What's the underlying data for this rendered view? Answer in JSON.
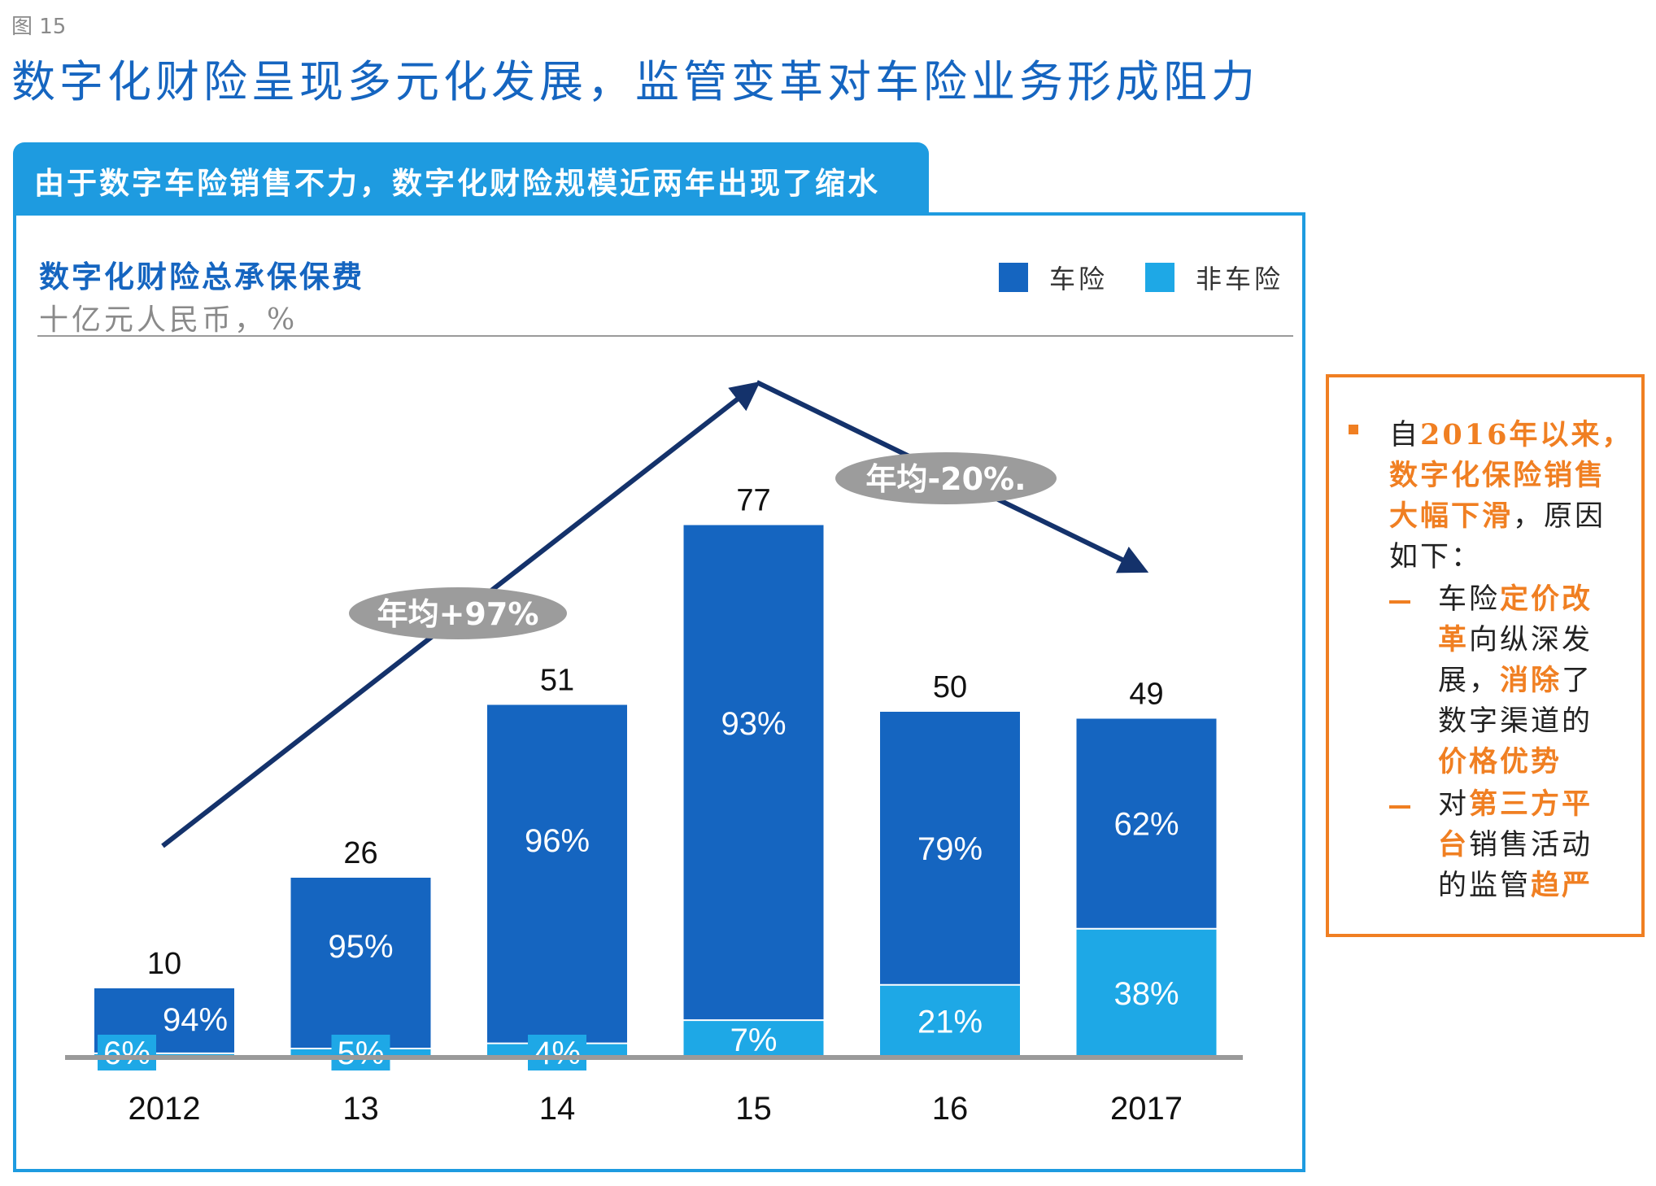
{
  "figure_label": "图 15",
  "page_title": "数字化财险呈现多元化发展，监管变革对车险业务形成阻力",
  "banner_text": "由于数字车险销售不力，数字化财险规模近两年出现了缩水",
  "chart_data": {
    "type": "bar",
    "stacked": true,
    "title": "数字化财险总承保保费",
    "unit": "十亿元人民币，%",
    "categories": [
      "2012",
      "13",
      "14",
      "15",
      "16",
      "2017"
    ],
    "totals": [
      10,
      26,
      51,
      77,
      50,
      49
    ],
    "series": [
      {
        "name": "车险",
        "color": "#1565c0",
        "share_labels": [
          "94%",
          "95%",
          "96%",
          "93%",
          "79%",
          "62%"
        ],
        "shares": [
          94,
          95,
          96,
          93,
          79,
          62
        ]
      },
      {
        "name": "非车险",
        "color": "#1ea8e6",
        "share_labels": [
          "6%",
          "5%",
          "4%",
          "7%",
          "21%",
          "38%"
        ],
        "shares": [
          6,
          5,
          4,
          7,
          21,
          38
        ]
      }
    ],
    "ylim": [
      0,
      85
    ],
    "legend_position": "top-right",
    "annotations": [
      {
        "text": "年均+97%",
        "from": "2012",
        "to": "15",
        "direction": "up"
      },
      {
        "text": "年均-20%.",
        "from": "15",
        "to": "2017",
        "direction": "down"
      }
    ]
  },
  "note": {
    "bullet": [
      {
        "text": "自",
        "hl": false
      },
      {
        "text": "2016年以来，",
        "hl": true
      },
      {
        "text": "数字化保险销售",
        "hl": true
      },
      {
        "text": "大幅下滑",
        "hl": true
      },
      {
        "text": "，原因",
        "hl": false
      },
      {
        "text": "如下：",
        "hl": false
      }
    ],
    "sub1": [
      "车险",
      "定价改",
      "革",
      "向纵深发",
      "展，",
      "消除",
      "了",
      "数字渠道的",
      "价格优势"
    ],
    "sub2": [
      "对",
      "第三方平",
      "台",
      "销售活动",
      "的监管",
      "趋严"
    ]
  },
  "colors": {
    "auto": "#1565c0",
    "non_auto": "#1ea8e6",
    "accent_orange": "#f07f22",
    "trend_arrow": "#14326b",
    "banner": "#1e9be0"
  }
}
